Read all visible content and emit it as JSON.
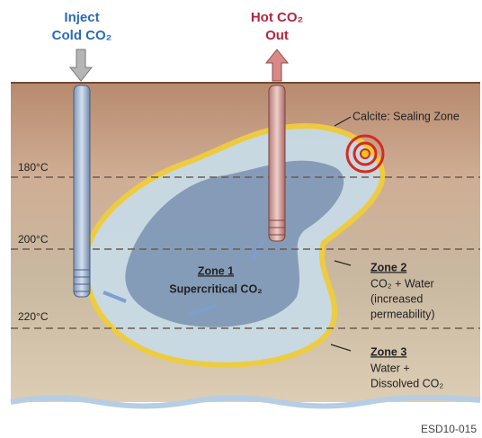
{
  "wells": [
    {
      "lines": [
        "Inject",
        "Cold CO₂"
      ]
    },
    {
      "lines": [
        "Hot CO₂",
        "Out"
      ]
    }
  ],
  "temperatures": [
    "180°C",
    "200°C",
    "220°C"
  ],
  "callout": "Calcite: Sealing Zone",
  "zones": [
    {
      "title": "Zone 1",
      "lines": [
        "Supercritical CO₂"
      ]
    },
    {
      "title": "Zone 2",
      "lines": [
        "CO₂ + Water",
        "(increased",
        "permeability)"
      ]
    },
    {
      "title": "Zone 3",
      "lines": [
        "Water +",
        "Dissolved CO₂"
      ]
    }
  ],
  "figure_id": "ESD10-015"
}
